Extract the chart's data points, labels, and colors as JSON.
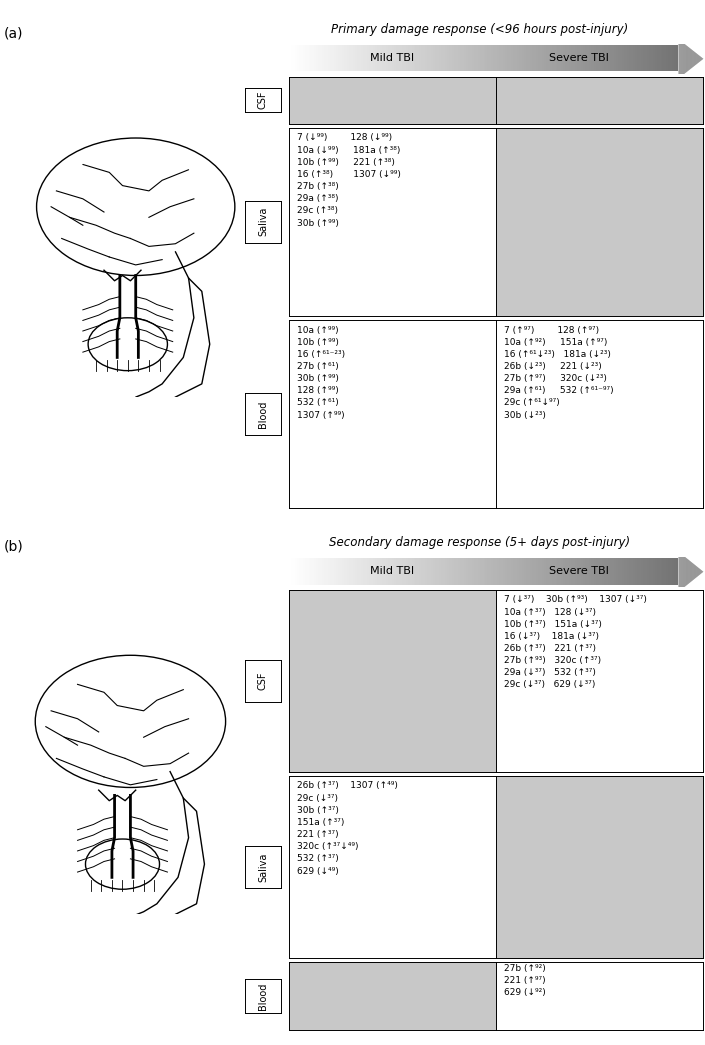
{
  "panel_a_title": "Primary damage response (<96 hours post-injury)",
  "panel_b_title": "Secondary damage response (5+ days post-injury)",
  "mild_tbi": "Mild TBI",
  "severe_tbi": "Severe TBI",
  "row_labels": [
    "CSF",
    "Saliva",
    "Blood"
  ],
  "gray_cell": "#c8c8c8",
  "white_cell": "#ffffff",
  "panel_a_cells": {
    "CSF": [
      "",
      ""
    ],
    "Saliva": [
      "7 (↓⁹⁹)        128 (↓⁹⁹)\n10a (↓⁹⁹)     181a (↑³⁸)\n10b (↑⁹⁹)     221 (↑³⁸)\n16 (↑³⁸)       1307 (↓⁹⁹)\n27b (↑³⁸)\n29a (↑³⁸)\n29c (↑³⁸)\n30b (↑⁹⁹)",
      ""
    ],
    "Blood": [
      "10a (↑⁹⁹)\n10b (↑⁹⁹)\n16 (↑⁶¹⁻²³)\n27b (↑⁶¹)\n30b (↑⁹⁹)\n128 (↑⁹⁹)\n532 (↑⁶¹)\n1307 (↑⁹⁹)",
      "7 (↑⁹⁷)        128 (↑⁹⁷)\n10a (↑⁹²)     151a (↑⁹⁷)\n16 (↑⁶¹↓²³)   181a (↓²³)\n26b (↓²³)     221 (↓²³)\n27b (↑⁹⁷)     320c (↓²³)\n29a (↑⁶¹)     532 (↑⁶¹⁻⁹⁷)\n29c (↑⁶¹↓⁹⁷)\n30b (↓²³)"
    ]
  },
  "panel_b_cells": {
    "CSF": [
      "",
      "7 (↓³⁷)    30b (↑⁹³)    1307 (↓³⁷)\n10a (↑³⁷)   128 (↓³⁷)\n10b (↑³⁷)   151a (↓³⁷)\n16 (↓³⁷)    181a (↓³⁷)\n26b (↑³⁷)   221 (↑³⁷)\n27b (↑⁹³)   320c (↑³⁷)\n29a (↓³⁷)   532 (↑³⁷)\n29c (↓³⁷)   629 (↓³⁷)"
    ],
    "Saliva": [
      "26b (↑³⁷)    1307 (↑⁴⁹)\n29c (↓³⁷)\n30b (↑³⁷)\n151a (↑³⁷)\n221 (↑³⁷)\n320c (↑³⁷↓⁴⁹)\n532 (↑³⁷)\n629 (↓⁴⁹)",
      ""
    ],
    "Blood": [
      "",
      "27b (↑⁹²)\n221 (↑⁹⁷)\n629 (↓⁹²)"
    ]
  }
}
